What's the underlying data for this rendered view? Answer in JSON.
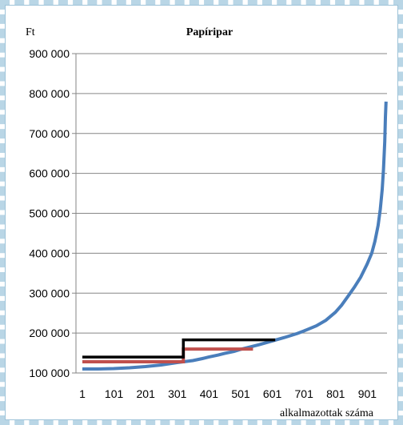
{
  "chart_data": {
    "type": "line",
    "title": "Papíripar",
    "ylabel": "Ft",
    "xlabel": "alkalmazottak száma",
    "ylim": [
      100000,
      900000
    ],
    "xlim": [
      1,
      960
    ],
    "x_ticks": [
      "1",
      "101",
      "201",
      "301",
      "401",
      "501",
      "601",
      "701",
      "801",
      "901"
    ],
    "y_ticks": [
      "100 000",
      "200 000",
      "300 000",
      "400 000",
      "500 000",
      "600 000",
      "700 000",
      "800 000",
      "900 000"
    ],
    "grid": "horizontal",
    "series": [
      {
        "color": "#4a7ebb",
        "points": [
          [
            1,
            110000
          ],
          [
            50,
            110000
          ],
          [
            100,
            111000
          ],
          [
            150,
            113000
          ],
          [
            200,
            116000
          ],
          [
            250,
            120000
          ],
          [
            300,
            126000
          ],
          [
            320,
            128000
          ],
          [
            350,
            131000
          ],
          [
            380,
            136000
          ],
          [
            400,
            140000
          ],
          [
            430,
            145000
          ],
          [
            450,
            149000
          ],
          [
            480,
            154000
          ],
          [
            500,
            159000
          ],
          [
            530,
            165000
          ],
          [
            560,
            171000
          ],
          [
            600,
            180000
          ],
          [
            640,
            189000
          ],
          [
            680,
            199000
          ],
          [
            700,
            205000
          ],
          [
            740,
            218000
          ],
          [
            770,
            232000
          ],
          [
            800,
            252000
          ],
          [
            820,
            270000
          ],
          [
            840,
            292000
          ],
          [
            860,
            315000
          ],
          [
            880,
            340000
          ],
          [
            900,
            372000
          ],
          [
            915,
            400000
          ],
          [
            925,
            430000
          ],
          [
            935,
            470000
          ],
          [
            942,
            510000
          ],
          [
            948,
            560000
          ],
          [
            952,
            610000
          ],
          [
            956,
            680000
          ],
          [
            958,
            740000
          ],
          [
            960,
            780000
          ]
        ]
      },
      {
        "color": "#c0504d",
        "points": [
          [
            1,
            128000
          ],
          [
            320,
            128000
          ],
          [
            320,
            160000
          ],
          [
            540,
            160000
          ]
        ]
      },
      {
        "color": "#000000",
        "points": [
          [
            1,
            140000
          ],
          [
            320,
            140000
          ],
          [
            320,
            183000
          ],
          [
            610,
            183000
          ]
        ]
      }
    ]
  }
}
